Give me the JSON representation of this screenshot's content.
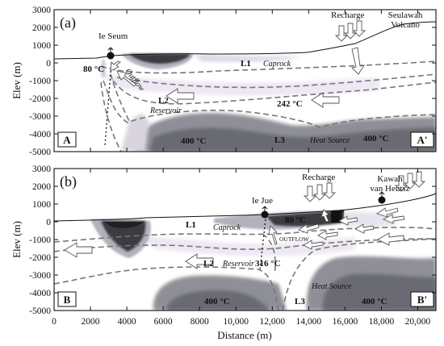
{
  "figure": {
    "x_axis": {
      "label": "Distance (m)",
      "ticks": [
        "0",
        "2000",
        "4000",
        "6000",
        "8000",
        "10,000",
        "12,000",
        "14,000",
        "16,000",
        "18,000",
        "20,000"
      ]
    },
    "y_axis": {
      "label": "Elev (m)",
      "ticks": [
        "3000",
        "2000",
        "1000",
        "0",
        "-1000",
        "-2000",
        "-3000",
        "-4000",
        "-5000"
      ]
    }
  },
  "panel_a": {
    "tag": "(a)",
    "corner_left": "A",
    "corner_right": "A'",
    "features": {
      "ie_seum": "Ie Seum",
      "recharge": "Recharge",
      "volcano_line1": "Seulawah",
      "volcano_line2": "Volcano",
      "temp_surface": "80 °C",
      "outflow": "Outflow",
      "l1": "L1",
      "caprock": "Caprock",
      "l2": "L2",
      "reservoir": "Reservoir",
      "temp_reservoir": "242 °C",
      "l3": "L3",
      "heat_source": "Heat Source",
      "temp_left": "400 °C",
      "temp_right": "400 °C"
    }
  },
  "panel_b": {
    "tag": "(b)",
    "corner_left": "B",
    "corner_right": "B'",
    "features": {
      "ie_jue": "Ie Jue",
      "recharge": "Recharge",
      "volcano_line1": "Kawah",
      "volcano_line2": "van Heutsz",
      "temp_surface": "80 °C",
      "outflow": "OUTFLOW",
      "l1": "L1",
      "caprock": "Caprock",
      "l2": "L2",
      "reservoir": "Reservoir",
      "temp_reservoir": "316 °C",
      "l3": "L3",
      "heat_source": "Heat Source",
      "temp_left": "400 °C",
      "temp_right": "400 °C"
    }
  }
}
